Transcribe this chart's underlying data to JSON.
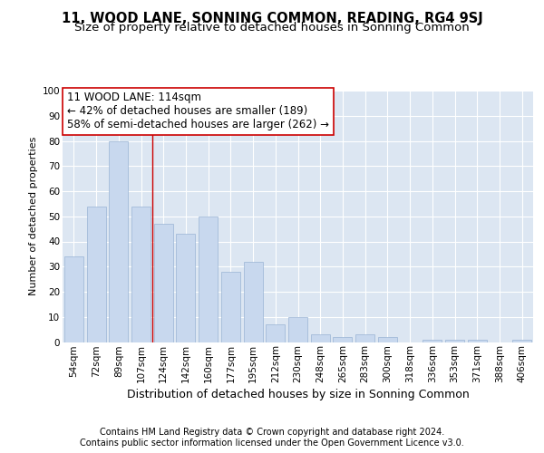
{
  "title": "11, WOOD LANE, SONNING COMMON, READING, RG4 9SJ",
  "subtitle": "Size of property relative to detached houses in Sonning Common",
  "xlabel": "Distribution of detached houses by size in Sonning Common",
  "ylabel": "Number of detached properties",
  "bar_color": "#c8d8ee",
  "bar_edgecolor": "#9ab4d4",
  "background_color": "#dce6f2",
  "annotation_text": "11 WOOD LANE: 114sqm\n← 42% of detached houses are smaller (189)\n58% of semi-detached houses are larger (262) →",
  "vline_x": 3.5,
  "vline_color": "#cc0000",
  "categories": [
    "54sqm",
    "72sqm",
    "89sqm",
    "107sqm",
    "124sqm",
    "142sqm",
    "160sqm",
    "177sqm",
    "195sqm",
    "212sqm",
    "230sqm",
    "248sqm",
    "265sqm",
    "283sqm",
    "300sqm",
    "318sqm",
    "336sqm",
    "353sqm",
    "371sqm",
    "388sqm",
    "406sqm"
  ],
  "values": [
    34,
    54,
    80,
    54,
    47,
    43,
    50,
    28,
    32,
    7,
    10,
    3,
    2,
    3,
    2,
    0,
    1,
    1,
    1,
    0,
    1
  ],
  "ylim": [
    0,
    100
  ],
  "yticks": [
    0,
    10,
    20,
    30,
    40,
    50,
    60,
    70,
    80,
    90,
    100
  ],
  "footer_line1": "Contains HM Land Registry data © Crown copyright and database right 2024.",
  "footer_line2": "Contains public sector information licensed under the Open Government Licence v3.0.",
  "title_fontsize": 10.5,
  "subtitle_fontsize": 9.5,
  "xlabel_fontsize": 9,
  "ylabel_fontsize": 8,
  "tick_fontsize": 7.5,
  "footer_fontsize": 7,
  "annot_fontsize": 8.5
}
